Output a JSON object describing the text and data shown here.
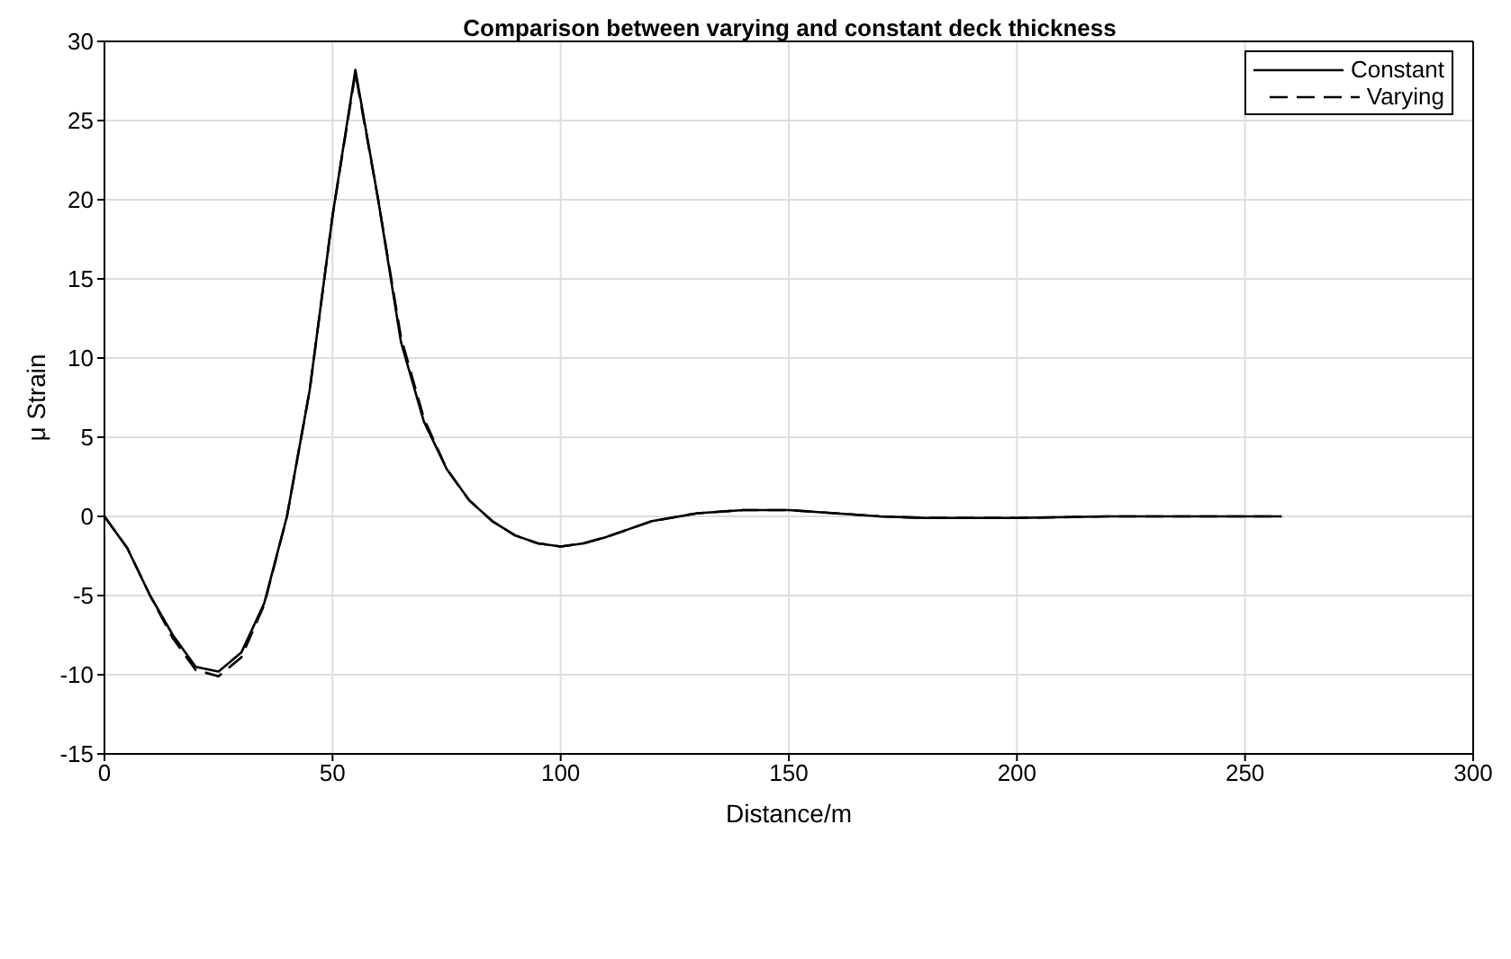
{
  "chart_data": {
    "type": "line",
    "title": "Comparison between varying and constant deck thickness",
    "xlabel": "Distance/m",
    "ylabel": "μ Strain",
    "xlim": [
      0,
      300
    ],
    "xticks": [
      0,
      50,
      100,
      150,
      200,
      250,
      300
    ],
    "ylim": [
      -15,
      30
    ],
    "yticks": [
      -15,
      -10,
      -5,
      0,
      5,
      10,
      15,
      20,
      25,
      30
    ],
    "grid": true,
    "legend": "top right",
    "marker": "none",
    "series": [
      {
        "name": "Constant",
        "color": "#000000",
        "line_style": "solid",
        "x": [
          0,
          5,
          10,
          15,
          20,
          25,
          30,
          35,
          40,
          45,
          50,
          55,
          60,
          65,
          70,
          75,
          80,
          85,
          90,
          95,
          100,
          105,
          110,
          120,
          130,
          140,
          150,
          160,
          170,
          180,
          200,
          220,
          240,
          258
        ],
        "values": [
          0,
          -2,
          -5,
          -7.5,
          -9.5,
          -9.8,
          -8.6,
          -5.5,
          0,
          8,
          19,
          28.2,
          20,
          11,
          6,
          3,
          1,
          -0.3,
          -1.2,
          -1.7,
          -1.9,
          -1.7,
          -1.3,
          -0.3,
          0.2,
          0.4,
          0.4,
          0.2,
          0,
          -0.1,
          -0.1,
          0,
          0,
          0
        ]
      },
      {
        "name": "Varying",
        "color": "#000000",
        "line_style": "dashed",
        "x": [
          0,
          5,
          10,
          15,
          20,
          25,
          30,
          35,
          40,
          45,
          50,
          55,
          60,
          65,
          70,
          75,
          80,
          85,
          90,
          95,
          100,
          105,
          110,
          120,
          130,
          140,
          150,
          160,
          170,
          180,
          200,
          220,
          240,
          258
        ],
        "values": [
          0,
          -2,
          -5,
          -7.7,
          -9.7,
          -10.1,
          -8.9,
          -5.6,
          0,
          8,
          19,
          28,
          20,
          11.3,
          6.2,
          3,
          1,
          -0.3,
          -1.2,
          -1.7,
          -1.9,
          -1.7,
          -1.3,
          -0.3,
          0.2,
          0.4,
          0.4,
          0.2,
          0,
          -0.1,
          -0.1,
          0,
          0,
          0
        ]
      }
    ]
  }
}
